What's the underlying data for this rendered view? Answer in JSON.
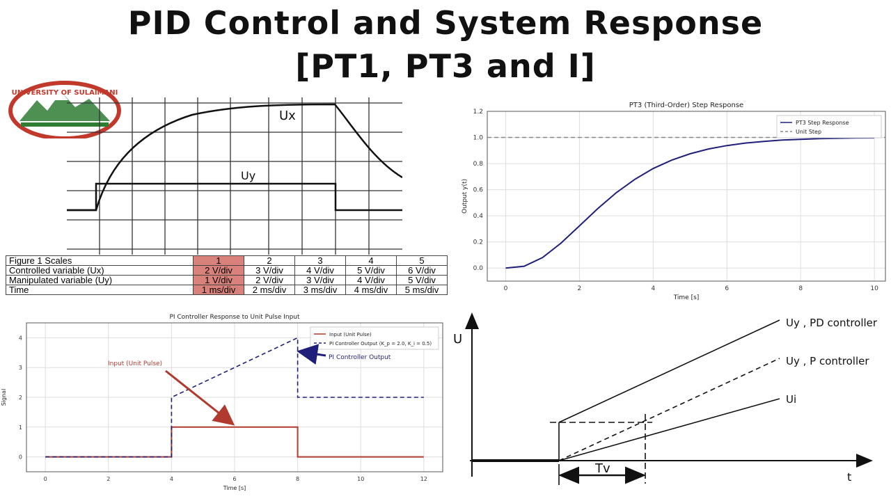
{
  "title": {
    "line1": "PID Control and System Response",
    "line2": "[PT1, PT3 and I]"
  },
  "logo": {
    "text": "UNIVERSITY OF SULAIMANI",
    "colors": [
      "#c0392b",
      "#2e7d32",
      "#1565c0"
    ]
  },
  "scope": {
    "ux_label": "Ux",
    "uy_label": "Uy"
  },
  "scales_table": {
    "header": [
      "Figure 1 Scales",
      "1",
      "2",
      "3",
      "4",
      "5"
    ],
    "rows": [
      [
        "Controlled variable (Ux)",
        "2 V/div",
        "3 V/div",
        "4 V/div",
        "5 V/div",
        "6 V/div"
      ],
      [
        "Manipulated variable (Uy)",
        "1 V/div",
        "2 V/div",
        "3 V/div",
        "4 V/div",
        "5 V/div"
      ],
      [
        "Time",
        "1 ms/div",
        "2 ms/div",
        "3 ms/div",
        "4 ms/div",
        "5 ms/div"
      ]
    ],
    "highlight_color": "#d9827c"
  },
  "chart_data": [
    {
      "type": "line",
      "title": "PT3 (Third-Order) Step Response",
      "xlabel": "Time [s]",
      "ylabel": "Output y(t)",
      "xlim": [
        -0.5,
        10.3
      ],
      "ylim": [
        -0.1,
        1.2
      ],
      "xticks": [
        "0",
        "2",
        "4",
        "6",
        "8",
        "10"
      ],
      "yticks": [
        "0.0",
        "0.2",
        "0.4",
        "0.6",
        "0.8",
        "1.0",
        "1.2"
      ],
      "legend": "top-right",
      "grid": true,
      "series": [
        {
          "name": "PT3 Step Response",
          "color": "#1f1f7a",
          "x": [
            0,
            0.5,
            1,
            1.5,
            2,
            2.5,
            3,
            3.5,
            4,
            4.5,
            5,
            5.5,
            6,
            6.5,
            7,
            7.5,
            8,
            8.5,
            9,
            9.5,
            10
          ],
          "y": [
            0,
            0.014,
            0.08,
            0.191,
            0.323,
            0.456,
            0.577,
            0.679,
            0.762,
            0.826,
            0.875,
            0.912,
            0.938,
            0.957,
            0.97,
            0.98,
            0.986,
            0.991,
            0.994,
            0.996,
            0.997
          ]
        },
        {
          "name": "Unit Step",
          "color": "#888888",
          "dashed": true,
          "x": [
            -0.5,
            10.3
          ],
          "y": [
            1,
            1
          ]
        }
      ]
    },
    {
      "type": "line",
      "title": "PI Controller Response to Unit Pulse Input",
      "xlabel": "Time [s]",
      "ylabel": "Signal",
      "xlim": [
        -0.6,
        12.6
      ],
      "ylim": [
        -0.5,
        4.5
      ],
      "xticks": [
        "0",
        "2",
        "4",
        "6",
        "8",
        "10",
        "12"
      ],
      "yticks": [
        "0",
        "1",
        "2",
        "3",
        "4"
      ],
      "legend": "top-right",
      "grid": true,
      "series": [
        {
          "name": "Input (Unit Pulse)",
          "color": "#b03a2e",
          "x": [
            0,
            4,
            4,
            8,
            8,
            12
          ],
          "y": [
            0,
            0,
            1,
            1,
            0,
            0
          ]
        },
        {
          "name": "PI Controller Output (K_p = 2.0, K_i = 0.5)",
          "color": "#1f1f7a",
          "dashed": true,
          "x": [
            0,
            4,
            4,
            8,
            8,
            12
          ],
          "y": [
            0,
            0,
            2,
            4,
            2,
            2
          ]
        }
      ],
      "annotations": [
        {
          "text": "Input (Unit Pulse)",
          "color": "#b03a2e",
          "x": 5.9,
          "y": 1.0
        },
        {
          "text": "PI Controller Output",
          "color": "#1f1f7a",
          "x": 8.1,
          "y": 3.6
        }
      ]
    }
  ],
  "diagram": {
    "u_label": "U",
    "t_label": "t",
    "tv_label": "Tv",
    "lines": [
      "Uy , PD controller",
      "Uy , P controller",
      "Ui"
    ]
  }
}
